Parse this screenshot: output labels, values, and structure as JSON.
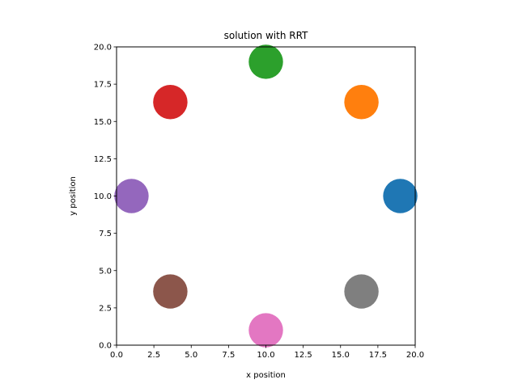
{
  "chart_data": {
    "type": "scatter",
    "title": "solution with RRT",
    "xlabel": "x position",
    "ylabel": "y position",
    "xlim": [
      0,
      20
    ],
    "ylim": [
      0,
      20
    ],
    "xticks": [
      "0.0",
      "2.5",
      "5.0",
      "7.5",
      "10.0",
      "12.5",
      "15.0",
      "17.5",
      "20.0"
    ],
    "yticks": [
      "0.0",
      "2.5",
      "5.0",
      "7.5",
      "10.0",
      "12.5",
      "15.0",
      "17.5",
      "20.0"
    ],
    "grid": false,
    "legend": "none",
    "points": [
      {
        "x": 19.0,
        "y": 10.0,
        "color": "#1f77b4"
      },
      {
        "x": 16.4,
        "y": 16.3,
        "color": "#ff7f0e"
      },
      {
        "x": 10.0,
        "y": 19.0,
        "color": "#2ca02c"
      },
      {
        "x": 3.6,
        "y": 16.3,
        "color": "#d62728"
      },
      {
        "x": 1.0,
        "y": 10.0,
        "color": "#9467bd"
      },
      {
        "x": 3.6,
        "y": 3.6,
        "color": "#8c564b"
      },
      {
        "x": 10.0,
        "y": 1.0,
        "color": "#e377c2"
      },
      {
        "x": 16.4,
        "y": 3.6,
        "color": "#7f7f7f"
      }
    ],
    "marker_radius": 1.15
  }
}
